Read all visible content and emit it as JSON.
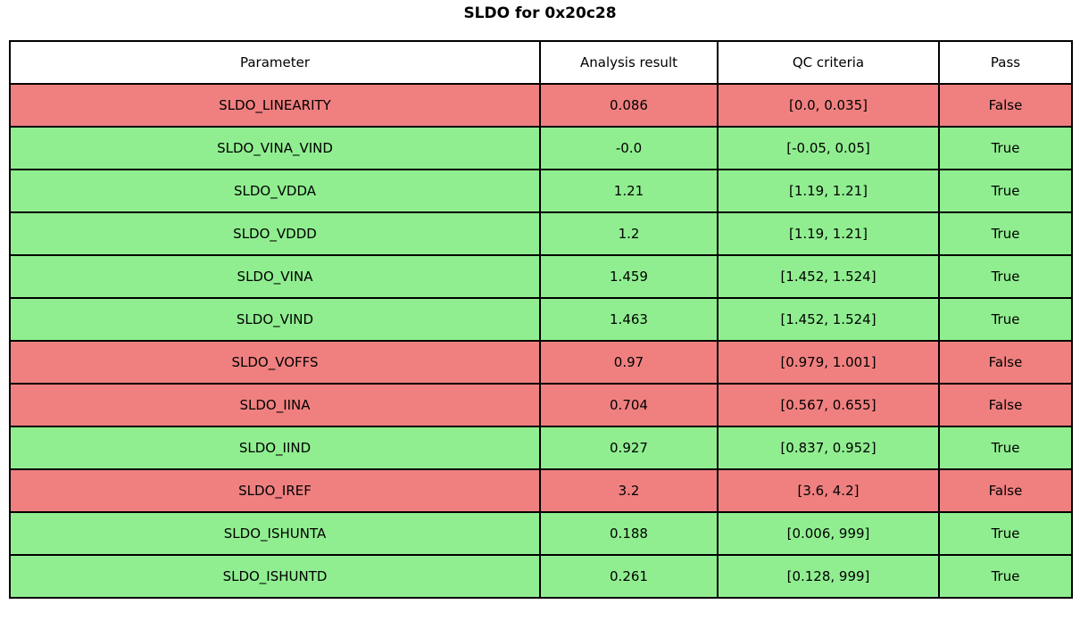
{
  "title": "SLDO for 0x20c28",
  "colors": {
    "pass_row_bg": "#90ee90",
    "fail_row_bg": "#f08080",
    "header_bg": "#ffffff",
    "border": "#000000",
    "text": "#000000"
  },
  "chart_data": {
    "type": "table",
    "title": "SLDO for 0x20c28",
    "columns": [
      "Parameter",
      "Analysis result",
      "QC criteria",
      "Pass"
    ],
    "rows": [
      {
        "parameter": "SLDO_LINEARITY",
        "analysis_result": "0.086",
        "qc_criteria": "[0.0, 0.035]",
        "pass": "False"
      },
      {
        "parameter": "SLDO_VINA_VIND",
        "analysis_result": "-0.0",
        "qc_criteria": "[-0.05, 0.05]",
        "pass": "True"
      },
      {
        "parameter": "SLDO_VDDA",
        "analysis_result": "1.21",
        "qc_criteria": "[1.19, 1.21]",
        "pass": "True"
      },
      {
        "parameter": "SLDO_VDDD",
        "analysis_result": "1.2",
        "qc_criteria": "[1.19, 1.21]",
        "pass": "True"
      },
      {
        "parameter": "SLDO_VINA",
        "analysis_result": "1.459",
        "qc_criteria": "[1.452, 1.524]",
        "pass": "True"
      },
      {
        "parameter": "SLDO_VIND",
        "analysis_result": "1.463",
        "qc_criteria": "[1.452, 1.524]",
        "pass": "True"
      },
      {
        "parameter": "SLDO_VOFFS",
        "analysis_result": "0.97",
        "qc_criteria": "[0.979, 1.001]",
        "pass": "False"
      },
      {
        "parameter": "SLDO_IINA",
        "analysis_result": "0.704",
        "qc_criteria": "[0.567, 0.655]",
        "pass": "False"
      },
      {
        "parameter": "SLDO_IIND",
        "analysis_result": "0.927",
        "qc_criteria": "[0.837, 0.952]",
        "pass": "True"
      },
      {
        "parameter": "SLDO_IREF",
        "analysis_result": "3.2",
        "qc_criteria": "[3.6, 4.2]",
        "pass": "False"
      },
      {
        "parameter": "SLDO_ISHUNTA",
        "analysis_result": "0.188",
        "qc_criteria": "[0.006, 999]",
        "pass": "True"
      },
      {
        "parameter": "SLDO_ISHUNTD",
        "analysis_result": "0.261",
        "qc_criteria": "[0.128, 999]",
        "pass": "True"
      }
    ]
  }
}
